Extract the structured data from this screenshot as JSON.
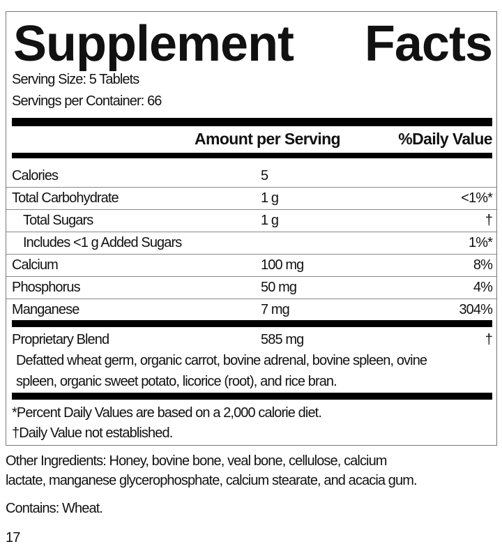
{
  "title": {
    "word1": "Supplement",
    "word2": "Facts"
  },
  "serving_size": "Serving Size: 5 Tablets",
  "servings_per_container": "Servings per Container: 66",
  "header": {
    "amount": "Amount per Serving",
    "dv": "%Daily Value"
  },
  "rows": [
    {
      "name": "Calories",
      "amount": "5",
      "dv": ""
    },
    {
      "name": "Total Carbohydrate",
      "amount": "1 g",
      "dv": "<1%*"
    },
    {
      "name": "Total Sugars",
      "amount": "1 g",
      "dv": "†"
    },
    {
      "name": "Includes <1 g Added Sugars",
      "amount": "",
      "dv": "1%*"
    },
    {
      "name": "Calcium",
      "amount": "100 mg",
      "dv": "8%"
    },
    {
      "name": "Phosphorus",
      "amount": "50 mg",
      "dv": "4%"
    },
    {
      "name": "Manganese",
      "amount": "7 mg",
      "dv": "304%"
    }
  ],
  "blend": {
    "name": "Proprietary Blend",
    "amount": "585 mg",
    "dv": "†",
    "line1": "Defatted wheat germ, organic carrot, bovine adrenal, bovine spleen, ovine",
    "line2": "spleen, organic sweet potato, licorice (root), and rice bran."
  },
  "footnotes": [
    "*Percent Daily Values are based on a 2,000 calorie diet.",
    "†Daily Value not established."
  ],
  "other_ingredients": [
    "Other Ingredients: Honey, bovine bone, veal bone, cellulose, calcium",
    "lactate, manganese glycerophosphate, calcium stearate, and acacia gum."
  ],
  "contains": "Contains: Wheat.",
  "page_number": "17"
}
